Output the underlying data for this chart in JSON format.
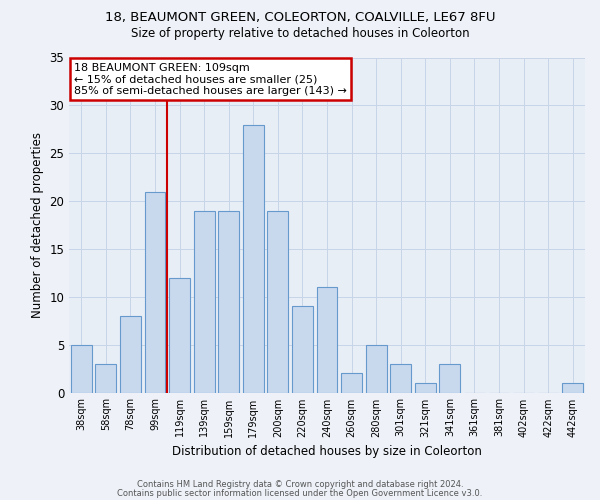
{
  "title1": "18, BEAUMONT GREEN, COLEORTON, COALVILLE, LE67 8FU",
  "title2": "Size of property relative to detached houses in Coleorton",
  "xlabel": "Distribution of detached houses by size in Coleorton",
  "ylabel": "Number of detached properties",
  "categories": [
    "38sqm",
    "58sqm",
    "78sqm",
    "99sqm",
    "119sqm",
    "139sqm",
    "159sqm",
    "179sqm",
    "200sqm",
    "220sqm",
    "240sqm",
    "260sqm",
    "280sqm",
    "301sqm",
    "321sqm",
    "341sqm",
    "361sqm",
    "381sqm",
    "402sqm",
    "422sqm",
    "442sqm"
  ],
  "values": [
    5,
    3,
    8,
    21,
    12,
    19,
    19,
    28,
    19,
    9,
    11,
    2,
    5,
    3,
    1,
    3,
    0,
    0,
    0,
    0,
    1
  ],
  "bar_color": "#c8d9ee",
  "bar_edge_color": "#6699cc",
  "grid_color": "#c8d4e8",
  "annotation_line1": "18 BEAUMONT GREEN: 109sqm",
  "annotation_line2": "← 15% of detached houses are smaller (25)",
  "annotation_line3": "85% of semi-detached houses are larger (143) →",
  "vline_x": 3.5,
  "vline_color": "#cc0000",
  "ylim": [
    0,
    35
  ],
  "yticks": [
    0,
    5,
    10,
    15,
    20,
    25,
    30,
    35
  ],
  "footer1": "Contains HM Land Registry data © Crown copyright and database right 2024.",
  "footer2": "Contains public sector information licensed under the Open Government Licence v3.0.",
  "bg_color": "#eef2f8",
  "plot_bg_color": "#e8eef6"
}
